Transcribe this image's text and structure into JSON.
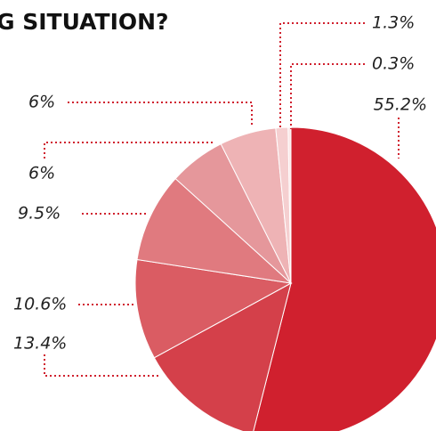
{
  "chart_data": {
    "type": "pie",
    "title": "G SITUATION?",
    "values": [
      55.2,
      13.4,
      10.6,
      9.5,
      6,
      6,
      1.3,
      0.3
    ],
    "value_labels": [
      "55.2%",
      "13.4%",
      "10.6%",
      "9.5%",
      "6%",
      "6%",
      "1.3%",
      "0.3%"
    ],
    "colors": [
      "#d0202e",
      "#d4404a",
      "#da5c63",
      "#e07a7f",
      "#e5979b",
      "#eeb3b5",
      "#f5cfd0",
      "#fbe8e8"
    ]
  }
}
